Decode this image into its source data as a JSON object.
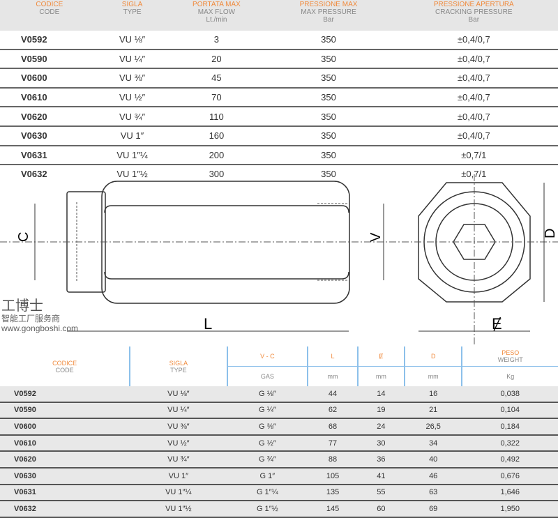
{
  "table1": {
    "headers": [
      {
        "it": "CODICE",
        "en": "CODE",
        "unit": ""
      },
      {
        "it": "SIGLA",
        "en": "TYPE",
        "unit": ""
      },
      {
        "it": "PORTATA MAX",
        "en": "MAX FLOW",
        "unit": "Lt./min"
      },
      {
        "it": "PRESSIONE MAX",
        "en": "MAX PRESSURE",
        "unit": "Bar"
      },
      {
        "it": "PRESSIONE APERTURA",
        "en": "CRACKING PRESSURE",
        "unit": "Bar"
      }
    ],
    "rows": [
      [
        "V0592",
        "VU ⅛″",
        "3",
        "350",
        "±0,4/0,7"
      ],
      [
        "V0590",
        "VU ¼″",
        "20",
        "350",
        "±0,4/0,7"
      ],
      [
        "V0600",
        "VU ⅜″",
        "45",
        "350",
        "±0,4/0,7"
      ],
      [
        "V0610",
        "VU ½″",
        "70",
        "350",
        "±0,4/0,7"
      ],
      [
        "V0620",
        "VU ¾″",
        "110",
        "350",
        "±0,4/0,7"
      ],
      [
        "V0630",
        "VU 1″",
        "160",
        "350",
        "±0,4/0,7"
      ],
      [
        "V0631",
        "VU 1″¼",
        "200",
        "350",
        "±0,7/1"
      ],
      [
        "V0632",
        "VU 1″½",
        "300",
        "350",
        "±0,7/1"
      ]
    ]
  },
  "drawing": {
    "labels": {
      "c": "C",
      "v": "V",
      "l": "L",
      "d": "D",
      "e": "Ɇ"
    }
  },
  "table2": {
    "headers": {
      "code_it": "CODICE",
      "code_en": "CODE",
      "type_it": "SIGLA",
      "type_en": "TYPE",
      "vc": "V - C",
      "gas": "GAS",
      "l": "L",
      "e": "Ɇ",
      "d": "D",
      "mm": "mm",
      "peso": "PESO",
      "weight": "WEIGHT",
      "kg": "Kg"
    },
    "rows": [
      [
        "V0592",
        "VU ⅛″",
        "G ⅛″",
        "44",
        "14",
        "16",
        "0,038"
      ],
      [
        "V0590",
        "VU ¼″",
        "G ¼″",
        "62",
        "19",
        "21",
        "0,104"
      ],
      [
        "V0600",
        "VU ⅜″",
        "G ⅜″",
        "68",
        "24",
        "26,5",
        "0,184"
      ],
      [
        "V0610",
        "VU ½″",
        "G ½″",
        "77",
        "30",
        "34",
        "0,322"
      ],
      [
        "V0620",
        "VU ¾″",
        "G ¾″",
        "88",
        "36",
        "40",
        "0,492"
      ],
      [
        "V0630",
        "VU 1″",
        "G 1″",
        "105",
        "41",
        "46",
        "0,676"
      ],
      [
        "V0631",
        "VU 1″¼",
        "G 1″¼",
        "135",
        "55",
        "63",
        "1,646"
      ],
      [
        "V0632",
        "VU 1″½",
        "G 1″½",
        "145",
        "60",
        "69",
        "1,950"
      ]
    ]
  },
  "watermark": {
    "brand": "工博士",
    "tagline": "智能工厂服务商",
    "url": "www.gongboshi.com"
  },
  "colors": {
    "header_accent": "#f08a3c",
    "divider": "#8cc0ea"
  }
}
